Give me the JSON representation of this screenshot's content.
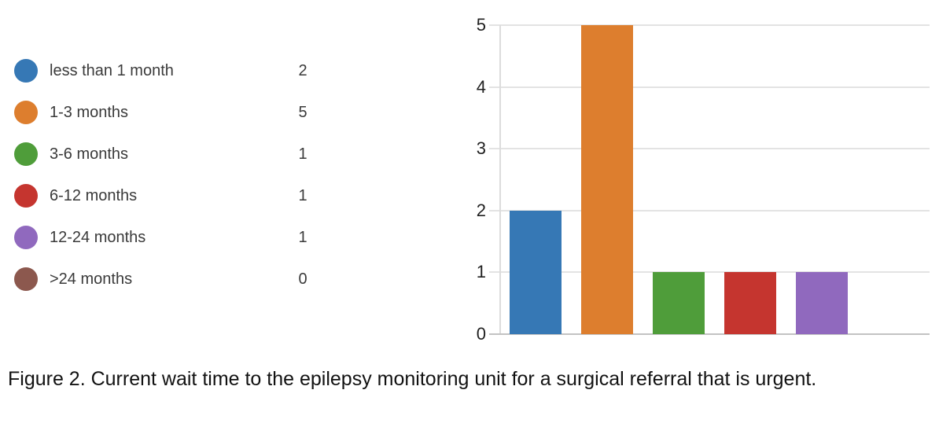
{
  "legend": {
    "items": [
      {
        "label": "less than 1 month",
        "count": "2",
        "color": "#3678b5"
      },
      {
        "label": "1-3 months",
        "count": "5",
        "color": "#dd7e2e"
      },
      {
        "label": "3-6 months",
        "count": "1",
        "color": "#4f9d3a"
      },
      {
        "label": "6-12 months",
        "count": "1",
        "color": "#c5352f"
      },
      {
        "label": "12-24 months",
        "count": "1",
        "color": "#9069be"
      },
      {
        "label": ">24 months",
        "count": "0",
        "color": "#8c584e"
      }
    ]
  },
  "chart_data": {
    "type": "bar",
    "categories": [
      "less than 1 month",
      "1-3 months",
      "3-6 months",
      "6-12 months",
      "12-24 months",
      ">24 months"
    ],
    "values": [
      2,
      5,
      1,
      1,
      1,
      0
    ],
    "colors": [
      "#3678b5",
      "#dd7e2e",
      "#4f9d3a",
      "#c5352f",
      "#9069be",
      "#8c584e"
    ],
    "title": "",
    "xlabel": "",
    "ylabel": "",
    "ylim": [
      0,
      5
    ],
    "yticks": [
      0,
      1,
      2,
      3,
      4,
      5
    ],
    "grid": true,
    "legend_position": "left",
    "gridline_color": "#e3e3e3",
    "axis_color": "#c2c2c2"
  },
  "caption": "Figure 2. Current wait time to the epilepsy monitoring unit for a surgical referral that is urgent."
}
